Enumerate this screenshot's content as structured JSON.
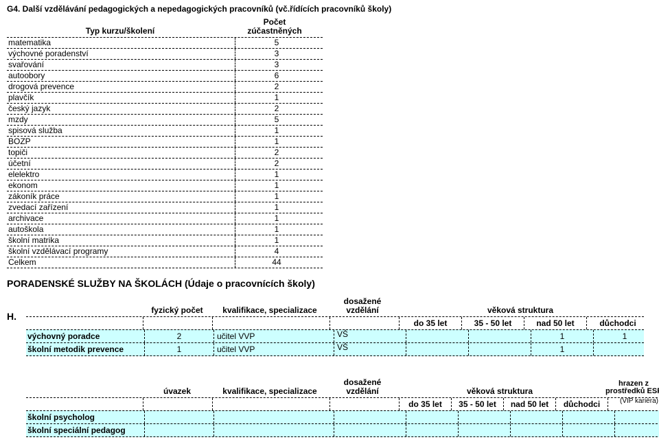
{
  "colors": {
    "row_bg": "#cdffff",
    "border": "#000000",
    "page_bg": "#ffffff"
  },
  "typography": {
    "body_fontsize": 12,
    "title_fontsize": 14
  },
  "g4": {
    "title": "G4. Další vzdělávání pedagogických a nepedagogických pracovníků (vč.řídících pracovníků školy)",
    "head_type": "Typ kurzu/školení",
    "head_count_l1": "Počet",
    "head_count_l2": "zúčastněných",
    "rows": [
      {
        "type": "matematika",
        "count": "5"
      },
      {
        "type": "výchovné poradenství",
        "count": "3"
      },
      {
        "type": "svařování",
        "count": "3"
      },
      {
        "type": "autoobory",
        "count": "6"
      },
      {
        "type": "drogová prevence",
        "count": "2"
      },
      {
        "type": "plavčík",
        "count": "1"
      },
      {
        "type": "český jazyk",
        "count": "2"
      },
      {
        "type": "mzdy",
        "count": "5"
      },
      {
        "type": "spisová služba",
        "count": "1"
      },
      {
        "type": "BOZP",
        "count": "1"
      },
      {
        "type": "topiči",
        "count": "2"
      },
      {
        "type": "účetní",
        "count": "2"
      },
      {
        "type": "elelektro",
        "count": "1"
      },
      {
        "type": "ekonom",
        "count": "1"
      },
      {
        "type": "zákoník práce",
        "count": "1"
      },
      {
        "type": "zvedací zařízení",
        "count": "1"
      },
      {
        "type": "archivace",
        "count": "1"
      },
      {
        "type": "autoškola",
        "count": "1"
      },
      {
        "type": "školní matrika",
        "count": "1"
      },
      {
        "type": "školní vzdělávací programy",
        "count": "4"
      },
      {
        "type": "Celkem",
        "count": "44"
      }
    ]
  },
  "h_section_title": "PORADENSKÉ SLUŽBY NA ŠKOLÁCH (Údaje o pracovnících školy)",
  "h_letter": "H.",
  "h1": {
    "head_fyz": "fyzický počet",
    "head_kval": "kvalifikace, specializace",
    "head_dos_l1": "dosažené",
    "head_dos_l2": "vzdělání",
    "head_vek": "věková struktura",
    "sub": [
      "do 35 let",
      "35 - 50 let",
      "nad 50 let",
      "důchodci"
    ],
    "rows": [
      {
        "name": "výchovný poradce",
        "fyz": "2",
        "kval": "učitel VVP",
        "dos": "VŠ",
        "v": [
          "",
          "",
          "1",
          "1"
        ]
      },
      {
        "name": "školní metodik prevence",
        "fyz": "1",
        "kval": "učitel VVP",
        "dos": "VŠ",
        "v": [
          "",
          "",
          "1",
          ""
        ]
      }
    ]
  },
  "h2": {
    "head_uv": "úvazek",
    "head_kval": "kvalifikace, specializace",
    "head_dos_l1": "dosažené",
    "head_dos_l2": "vzdělání",
    "head_vek": "věková struktura",
    "head_esf_l1": "hrazen z",
    "head_esf_l2": "prostředků ESF",
    "head_esf_l3": "(VIP kariéra)",
    "sub": [
      "do 35 let",
      "35 - 50 let",
      "nad 50 let",
      "důchodci"
    ],
    "rows": [
      {
        "name": "školní psycholog",
        "uv": "",
        "kval": "",
        "dos": "",
        "v": [
          "",
          "",
          "",
          ""
        ],
        "esf": ""
      },
      {
        "name": "školní speciální pedagog",
        "uv": "",
        "kval": "",
        "dos": "",
        "v": [
          "",
          "",
          "",
          ""
        ],
        "esf": ""
      }
    ]
  }
}
